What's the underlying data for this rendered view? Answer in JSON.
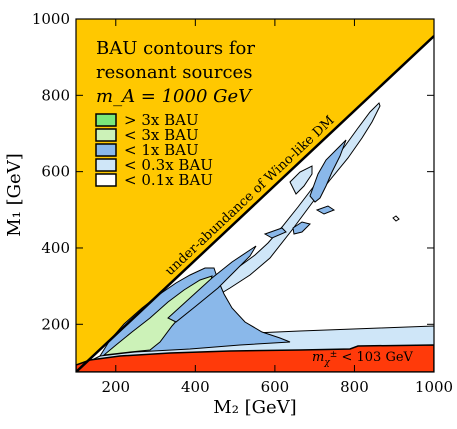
{
  "chart_data": {
    "type": "area",
    "xlabel": "M₂ [GeV]",
    "ylabel": "M₁ [GeV]",
    "xlim": [
      100,
      1000
    ],
    "ylim": [
      75,
      1000
    ],
    "x_ticks": [
      "200",
      "400",
      "600",
      "800",
      "1000"
    ],
    "x_tick_values": [
      200,
      400,
      600,
      800,
      1000
    ],
    "y_ticks": [
      "200",
      "400",
      "600",
      "800",
      "1000"
    ],
    "y_tick_values": [
      200,
      400,
      600,
      800,
      1000
    ],
    "title_lines": [
      "BAU contours for",
      "resonant sources",
      "m_A = 1000 GeV"
    ],
    "legend": [
      {
        "label": "> 3x BAU",
        "color": "#7ae87a"
      },
      {
        "label": "< 3x BAU",
        "color": "#ccf2b8"
      },
      {
        "label": "< 1x BAU",
        "color": "#8ab8ea"
      },
      {
        "label": "< 0.3x BAU",
        "color": "#cfe6f8"
      },
      {
        "label": "< 0.1x BAU",
        "color": "#ffffff"
      }
    ],
    "regions": [
      {
        "name": "under-abundance of Wino-like DM",
        "color": "#ffc800",
        "boundary": "M1 > M2"
      },
      {
        "name": "m_χ± < 103 GeV",
        "color": "#ff3a0a"
      }
    ],
    "annotations": {
      "diagonal": "under-abundance of Wino-like DM",
      "chargino_prefix": "m",
      "chargino_sub": "χ",
      "chargino_sup": "±",
      "chargino_rest": " < 103 GeV"
    },
    "grid": false,
    "legend_position": "upper-left"
  }
}
